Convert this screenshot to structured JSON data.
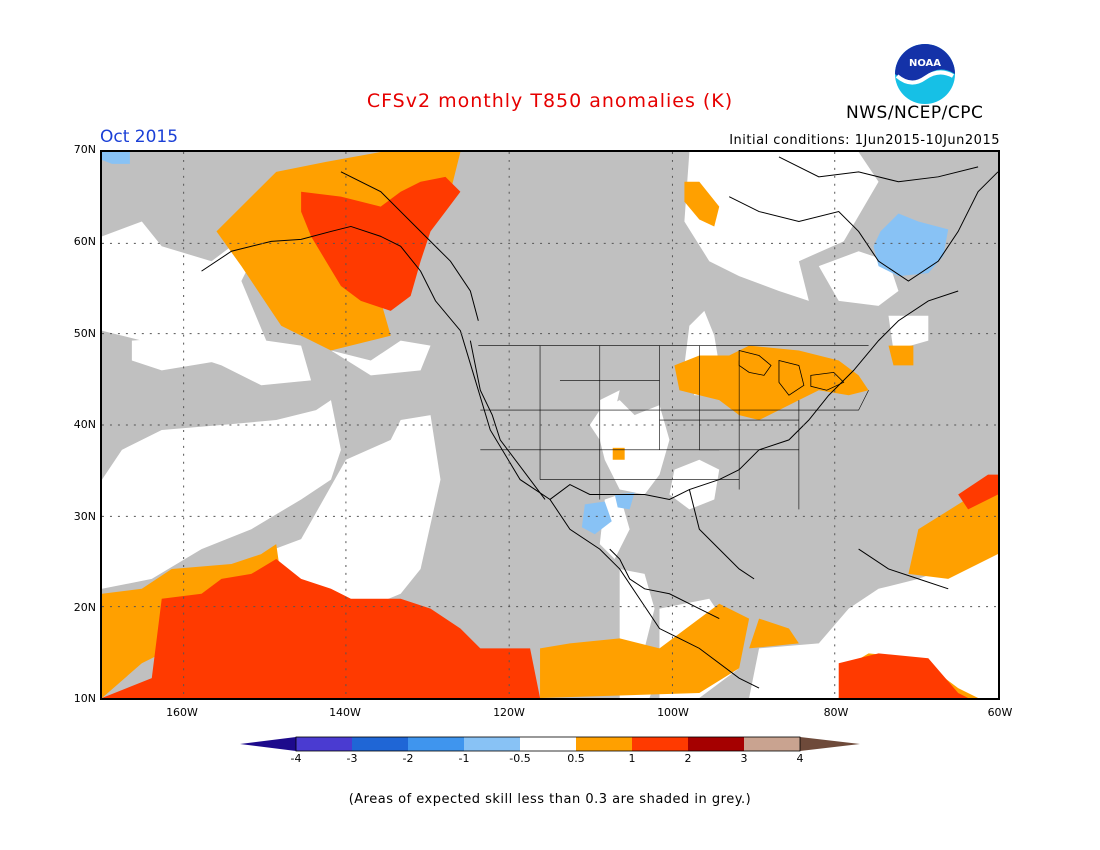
{
  "header": {
    "title": "CFSv2 monthly T850 anomalies (K)",
    "org": "NWS/NCEP/CPC",
    "month": "Oct 2015",
    "initial_conditions": "Initial conditions: 1Jun2015-10Jun2015"
  },
  "logo": {
    "name": "noaa-logo",
    "text": "NOAA"
  },
  "map": {
    "extent": {
      "lon": [
        -170,
        -60
      ],
      "lat": [
        10,
        70
      ]
    },
    "grid": true,
    "lat_labels": [
      "70N",
      "60N",
      "50N",
      "40N",
      "30N",
      "20N",
      "10N"
    ],
    "lon_labels": [
      "160W",
      "140W",
      "120W",
      "100W",
      "80W",
      "60W"
    ]
  },
  "colorbar": {
    "labels": [
      "-4",
      "-3",
      "-2",
      "-1",
      "-0.5",
      "0.5",
      "1",
      "2",
      "3",
      "4"
    ],
    "colors": [
      "#1d0a8c",
      "#4a3bd1",
      "#1f66d6",
      "#3f95ee",
      "#88c2f5",
      "#ffffff",
      "#ffa000",
      "#ff3a00",
      "#a50000",
      "#c9a390",
      "#6e4a3a"
    ]
  },
  "footnote": "(Areas of expected skill less than 0.3 are shaded in grey.)"
}
